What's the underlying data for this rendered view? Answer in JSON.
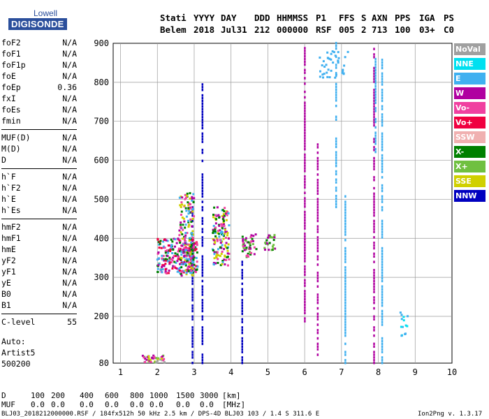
{
  "logo": {
    "line1": "Lowell",
    "line2": "DIGISONDE"
  },
  "header": {
    "row1": [
      "Stati",
      "YYYY",
      "DAY",
      "DDD",
      "HHMMSS",
      "P1",
      "FFS",
      "S",
      "AXN",
      "PPS",
      "IGA",
      "PS"
    ],
    "row2": [
      "Belem",
      "2018",
      "Jul31",
      "212",
      "000000",
      "RSF",
      "005",
      "2",
      "713",
      "100",
      "03+",
      "C0"
    ]
  },
  "params": {
    "group1": [
      {
        "name": "foF2",
        "value": "N/A"
      },
      {
        "name": "foF1",
        "value": "N/A"
      },
      {
        "name": "foF1p",
        "value": "N/A"
      },
      {
        "name": "foE",
        "value": "N/A"
      },
      {
        "name": "foEp",
        "value": "0.36"
      },
      {
        "name": "fxI",
        "value": "N/A"
      },
      {
        "name": "foEs",
        "value": "N/A"
      },
      {
        "name": "fmin",
        "value": "N/A"
      }
    ],
    "group2": [
      {
        "name": "MUF(D)",
        "value": "N/A"
      },
      {
        "name": "M(D)",
        "value": "N/A"
      },
      {
        "name": "D",
        "value": "N/A"
      }
    ],
    "group3": [
      {
        "name": "h`F",
        "value": "N/A"
      },
      {
        "name": "h`F2",
        "value": "N/A"
      },
      {
        "name": "h`E",
        "value": "N/A"
      },
      {
        "name": "h`Es",
        "value": "N/A"
      }
    ],
    "group4": [
      {
        "name": "hmF2",
        "value": "N/A"
      },
      {
        "name": "hmF1",
        "value": "N/A"
      },
      {
        "name": "hmE",
        "value": "N/A"
      },
      {
        "name": "yF2",
        "value": "N/A"
      },
      {
        "name": "yF1",
        "value": "N/A"
      },
      {
        "name": "yE",
        "value": "N/A"
      },
      {
        "name": "B0",
        "value": "N/A"
      },
      {
        "name": "B1",
        "value": "N/A"
      }
    ],
    "group5": [
      {
        "name": "C-level",
        "value": "55"
      }
    ]
  },
  "auto": {
    "line1": "Auto:",
    "line2": "Artist5",
    "line3": "500200"
  },
  "legend": [
    {
      "label": "NoVal",
      "color": "#a0a0a0"
    },
    {
      "label": "NNE",
      "color": "#00e0f0"
    },
    {
      "label": "E",
      "color": "#40b0f0"
    },
    {
      "label": "W",
      "color": "#b000a0"
    },
    {
      "label": "Vo-",
      "color": "#f040a0"
    },
    {
      "label": "Vo+",
      "color": "#f00040"
    },
    {
      "label": "SSW",
      "color": "#f0b0b0"
    },
    {
      "label": "X-",
      "color": "#008000"
    },
    {
      "label": "X+",
      "color": "#70c040"
    },
    {
      "label": "SSE",
      "color": "#d0d000"
    },
    {
      "label": "NNW",
      "color": "#0000c0"
    }
  ],
  "bottom": {
    "d_row": [
      "D",
      "100",
      "200",
      "400",
      "600",
      "800",
      "1000",
      "1500",
      "3000",
      "[km]"
    ],
    "muf_row": [
      "MUF",
      "0.0",
      "0.0",
      "0.0",
      "0.0",
      "0.0",
      "0.0",
      "0.0",
      "0.0",
      "[MHz]"
    ]
  },
  "footer": {
    "left": "BLJ03_2018212000000.RSF / 184fx512h 50 kHz 2.5 km / DPS-4D BLJ03 103 / 1.4 S 311.6 E",
    "right": "Ion2Png v. 1.3.17"
  },
  "chart_data": {
    "type": "scatter",
    "xlabel": "",
    "ylabel": "",
    "xlim": [
      0.8,
      10
    ],
    "ylim": [
      80,
      900
    ],
    "xticks": [
      1,
      2,
      3,
      4,
      5,
      6,
      7,
      8,
      9,
      10
    ],
    "yticks": [
      80,
      200,
      300,
      400,
      500,
      600,
      700,
      800,
      900
    ],
    "grid": true,
    "vertical_traces": [
      {
        "x": 6.0,
        "from": 180,
        "to": 900,
        "color": "#b000a0"
      },
      {
        "x": 6.35,
        "from": 80,
        "to": 640,
        "color": "#b000a0"
      },
      {
        "x": 6.85,
        "from": 480,
        "to": 900,
        "color": "#40b0f0"
      },
      {
        "x": 7.1,
        "from": 80,
        "to": 520,
        "color": "#40b0f0"
      },
      {
        "x": 7.88,
        "from": 80,
        "to": 890,
        "color": "#b000a0"
      },
      {
        "x": 7.92,
        "from": 600,
        "to": 860,
        "color": "#40b0f0"
      },
      {
        "x": 8.1,
        "from": 80,
        "to": 860,
        "color": "#40b0f0"
      },
      {
        "x": 2.95,
        "from": 80,
        "to": 490,
        "color": "#0000c0"
      },
      {
        "x": 3.22,
        "from": 80,
        "to": 800,
        "color": "#0000c0"
      },
      {
        "x": 4.3,
        "from": 80,
        "to": 340,
        "color": "#0000c0"
      }
    ],
    "clusters": [
      {
        "x": [
          2.0,
          3.1
        ],
        "y": [
          310,
          400
        ],
        "colors": [
          "#f040a0",
          "#b000a0",
          "#40b0f0",
          "#008000",
          "#f00040"
        ],
        "n": 260
      },
      {
        "x": [
          2.6,
          3.0
        ],
        "y": [
          300,
          520
        ],
        "colors": [
          "#40b0f0",
          "#f040a0",
          "#b000a0",
          "#d0d000",
          "#008000"
        ],
        "n": 160
      },
      {
        "x": [
          3.5,
          3.95
        ],
        "y": [
          330,
          480
        ],
        "colors": [
          "#f040a0",
          "#b000a0",
          "#40b0f0",
          "#008000",
          "#d0d000"
        ],
        "n": 140
      },
      {
        "x": [
          4.3,
          4.7
        ],
        "y": [
          350,
          410
        ],
        "colors": [
          "#008000",
          "#b000a0",
          "#f040a0",
          "#70c040"
        ],
        "n": 50
      },
      {
        "x": [
          4.9,
          5.2
        ],
        "y": [
          370,
          410
        ],
        "colors": [
          "#008000",
          "#b000a0",
          "#70c040"
        ],
        "n": 28
      },
      {
        "x": [
          1.6,
          2.2
        ],
        "y": [
          82,
          100
        ],
        "colors": [
          "#f040a0",
          "#b000a0",
          "#70c040",
          "#d0d000",
          "#a0a0a0"
        ],
        "n": 40
      },
      {
        "x": [
          6.4,
          7.2
        ],
        "y": [
          810,
          880
        ],
        "colors": [
          "#40b0f0"
        ],
        "n": 40
      },
      {
        "x": [
          8.6,
          8.8
        ],
        "y": [
          150,
          220
        ],
        "colors": [
          "#00e0f0",
          "#40b0f0"
        ],
        "n": 14
      }
    ]
  }
}
